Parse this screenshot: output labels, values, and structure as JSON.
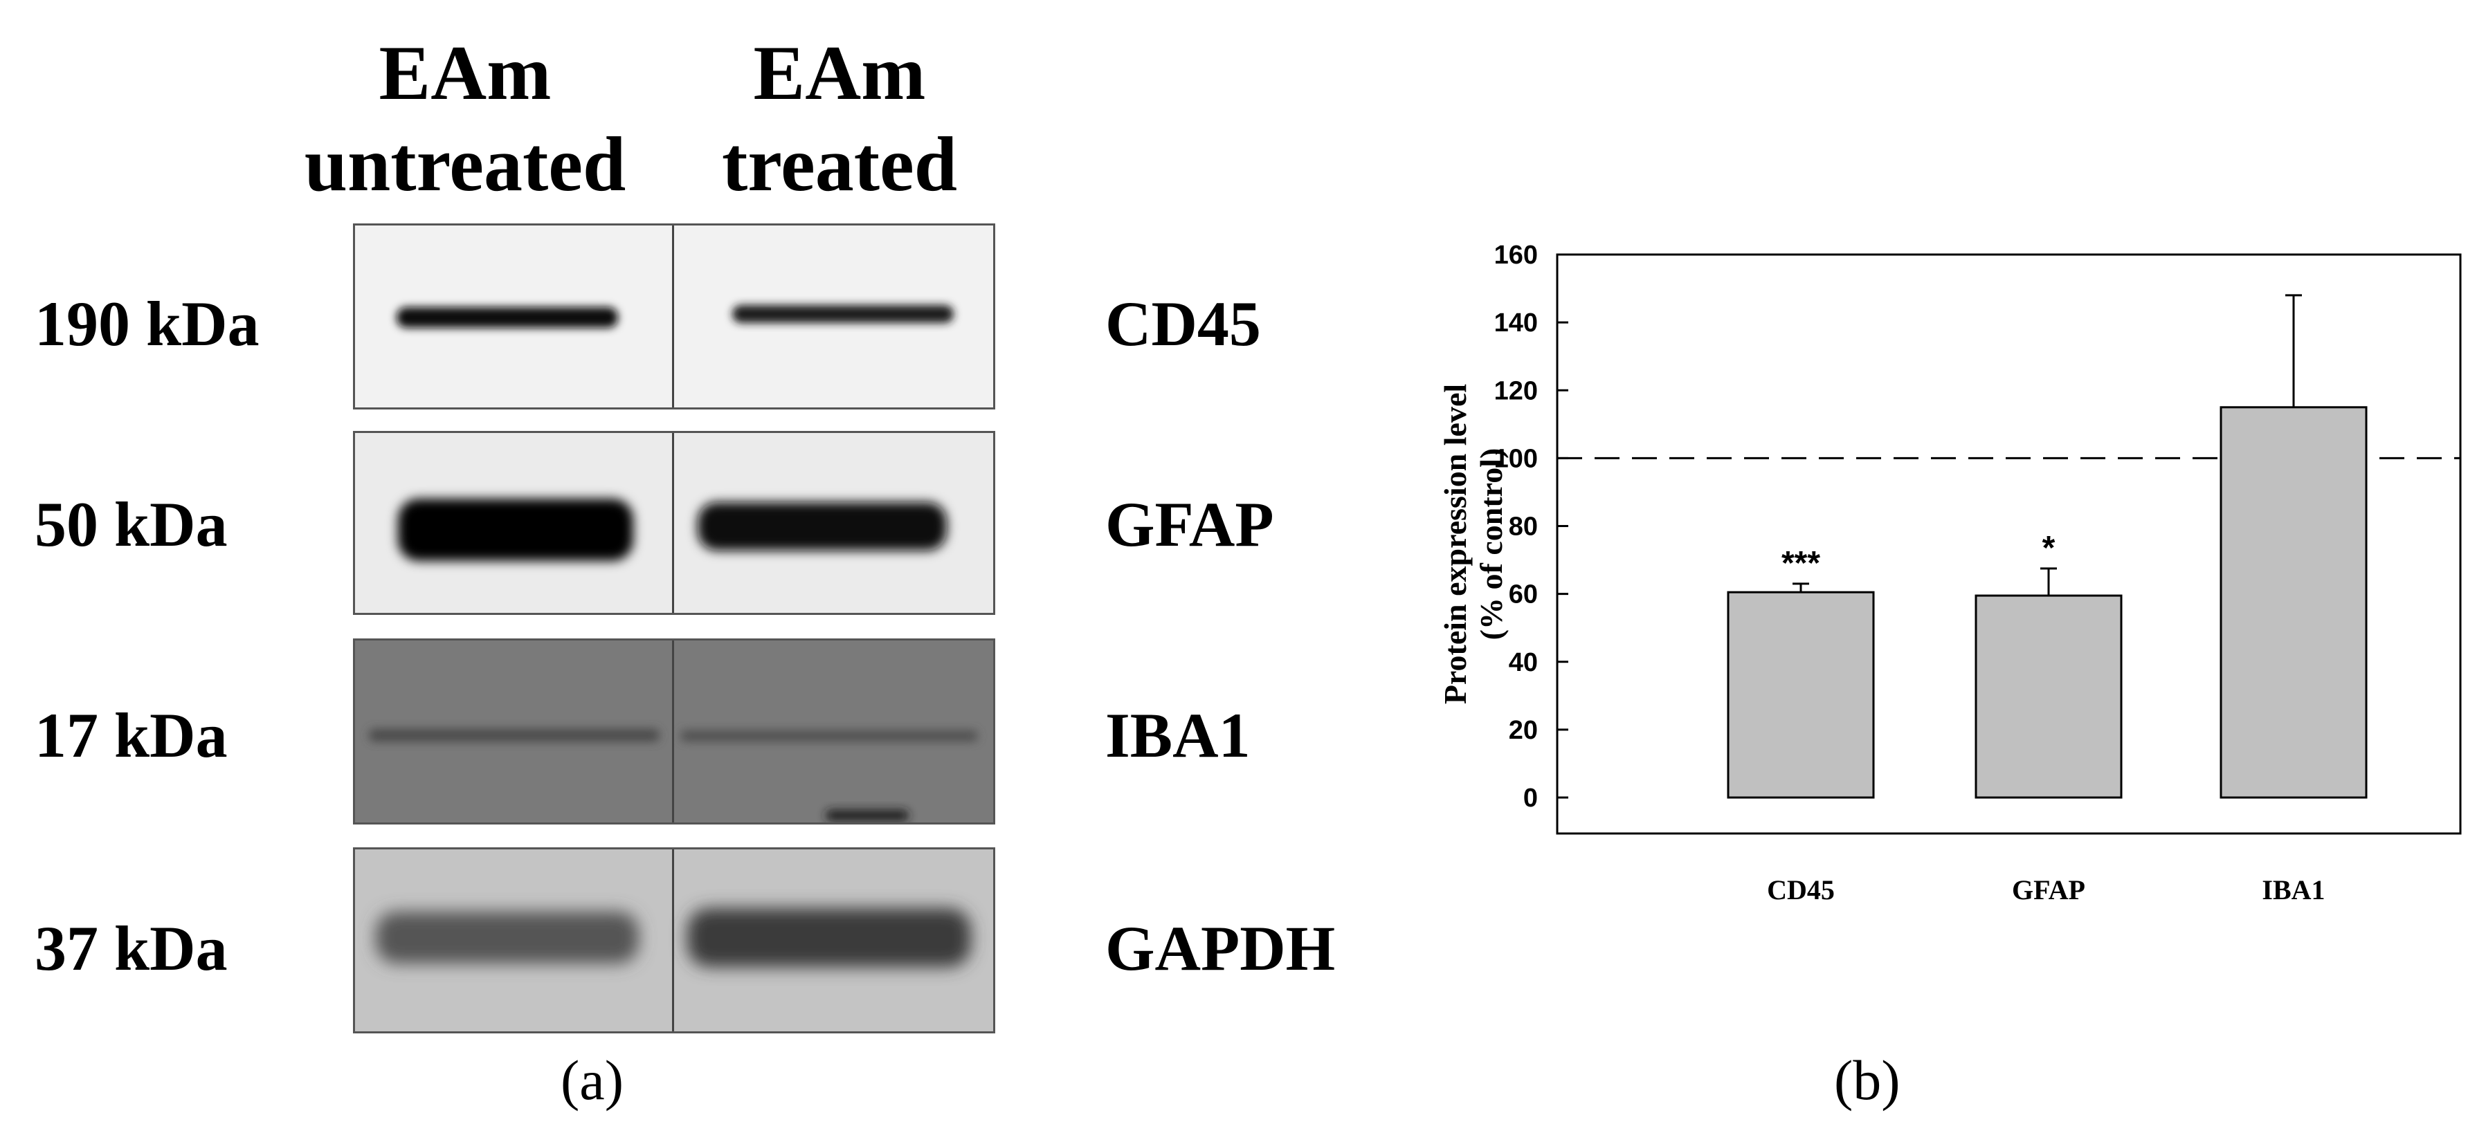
{
  "panel_a": {
    "label": "(a)",
    "columns": [
      {
        "line1": "EAm",
        "line2": "untreated"
      },
      {
        "line1": "EAm",
        "line2": "treated"
      }
    ],
    "rows": [
      {
        "kda": "190 kDa",
        "protein": "CD45",
        "background": "#f2f2f2"
      },
      {
        "kda": "50 kDa",
        "protein": "GFAP",
        "background": "#ebebeb"
      },
      {
        "kda": "17 kDa",
        "protein": "IBA1",
        "background": "#7a7a7a"
      },
      {
        "kda": "37 kDa",
        "protein": "GAPDH",
        "background": "#c4c4c4"
      }
    ]
  },
  "panel_b": {
    "label": "(b)"
  },
  "chart_data": {
    "type": "bar",
    "categories": [
      "CD45",
      "GFAP",
      "IBA1"
    ],
    "values": [
      60.5,
      59.5,
      115
    ],
    "errors": [
      2.5,
      8,
      33
    ],
    "significance": [
      "***",
      "*",
      ""
    ],
    "ylabel_line1": "Protein expression level",
    "ylabel_line2": "(% of control)",
    "ylim": [
      0,
      160
    ],
    "yticks": [
      0,
      20,
      40,
      60,
      80,
      100,
      120,
      140,
      160
    ],
    "reference_line": 100,
    "bar_color": "#c0c0c0"
  }
}
